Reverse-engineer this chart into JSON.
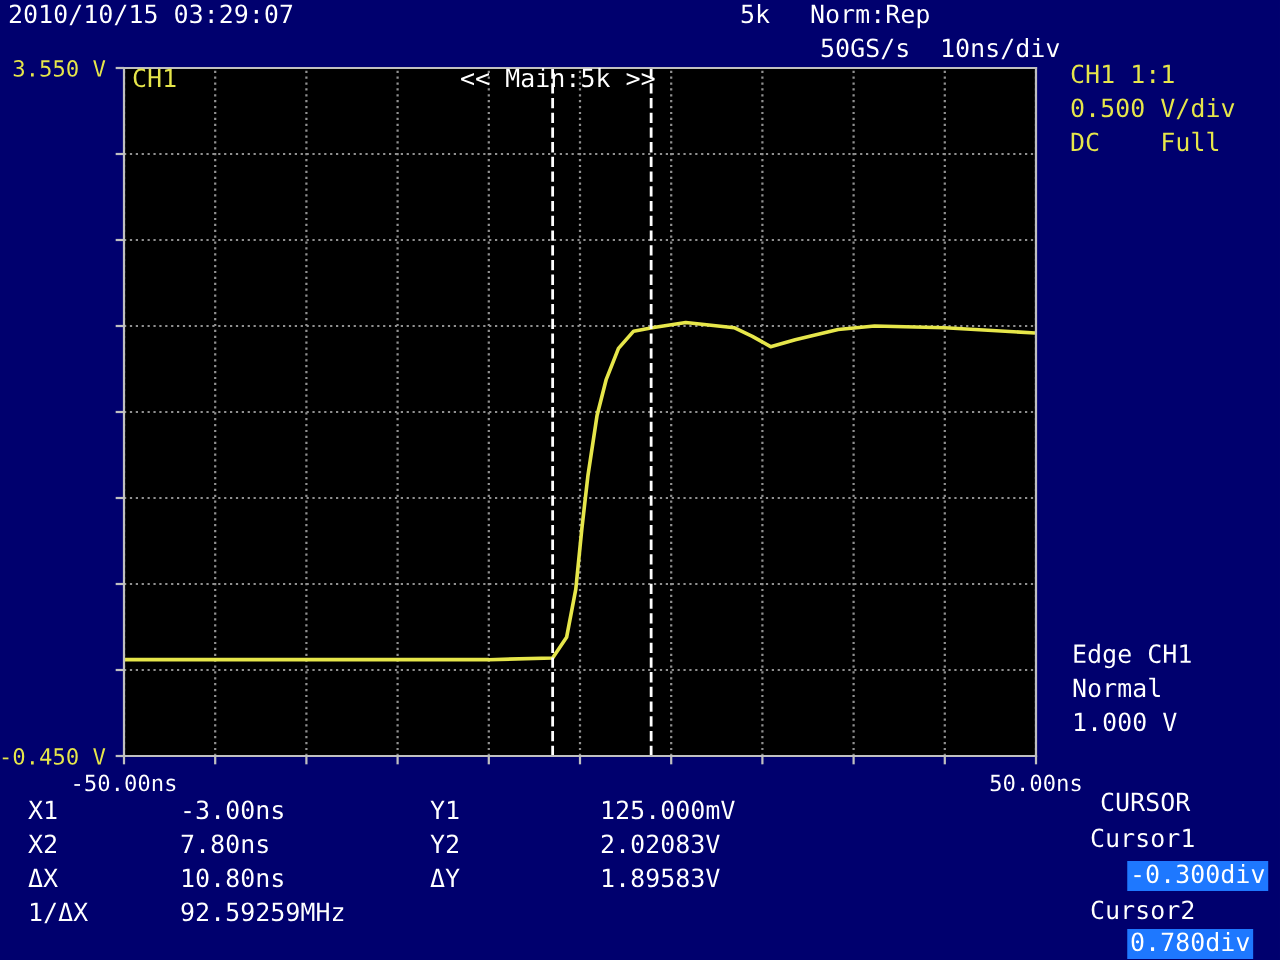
{
  "chart_data": {
    "type": "line",
    "x": [
      -50,
      -40,
      -30,
      -20,
      -10,
      -3,
      -1.47,
      -0.46,
      0.2,
      0.87,
      1.87,
      2.88,
      4.22,
      5.88,
      7.9,
      11.6,
      16.9,
      18.9,
      20.9,
      23.6,
      28.3,
      32.3,
      40,
      49.7
    ],
    "series": [
      {
        "color": "#e6e64a",
        "values": [
          0.11,
          0.11,
          0.11,
          0.11,
          0.11,
          0.12,
          0.24,
          0.52,
          0.87,
          1.18,
          1.53,
          1.74,
          1.92,
          2.02,
          2.04,
          2.07,
          2.04,
          1.99,
          1.93,
          1.97,
          2.03,
          2.05,
          2.04,
          2.01
        ]
      }
    ],
    "xlim": [
      -50,
      50
    ],
    "ylim": [
      -0.45,
      3.55
    ],
    "xticks": [
      {
        "value": -50,
        "label": "-50.00ns"
      },
      {
        "value": -40,
        "label": null
      },
      {
        "value": -30,
        "label": null
      },
      {
        "value": -20,
        "label": null
      },
      {
        "value": -10,
        "label": null
      },
      {
        "value": 0,
        "label": null
      },
      {
        "value": 10,
        "label": null
      },
      {
        "value": 20,
        "label": null
      },
      {
        "value": 30,
        "label": null
      },
      {
        "value": 40,
        "label": null
      },
      {
        "value": 50,
        "label": "50.00ns"
      }
    ],
    "yticks": [
      {
        "value": -0.45,
        "label": "-0.450 V"
      },
      {
        "value": 0.05,
        "label": null
      },
      {
        "value": 0.55,
        "label": null
      },
      {
        "value": 1.05,
        "label": null
      },
      {
        "value": 1.55,
        "label": null
      },
      {
        "value": 2.05,
        "label": null
      },
      {
        "value": 2.55,
        "label": null
      },
      {
        "value": 3.05,
        "label": null
      },
      {
        "value": 3.55,
        "label": "3.550 V"
      }
    ],
    "grid": true,
    "line_style": "solid",
    "marker": "none",
    "ref_lines": [
      {
        "axis": "x",
        "value": -3,
        "label": null,
        "color": "#ffffff",
        "line_style": "dashed"
      },
      {
        "axis": "x",
        "value": 7.8,
        "label": null,
        "color": "#ffffff",
        "line_style": "dashed"
      }
    ],
    "annotations": [
      "2010/10/15 03:29:07",
      "5k",
      "Norm:Rep",
      "50GS/s",
      "10ns/div",
      "CH1",
      "<< Main:5k >>",
      "CH1 1:1",
      "0.500 V/div",
      "DC    Full",
      "Edge CH1",
      "Normal",
      "1.000 V",
      "X1",
      "-3.00ns",
      "Y1",
      "125.000mV",
      "X2",
      "7.80ns",
      "Y2",
      "2.02083V",
      "ΔX",
      "10.80ns",
      "ΔY",
      "1.89583V",
      "1/ΔX",
      "92.59259MHz",
      "CURSOR",
      "Cursor1",
      "-0.300div",
      "Cursor2",
      "0.780div"
    ]
  }
}
